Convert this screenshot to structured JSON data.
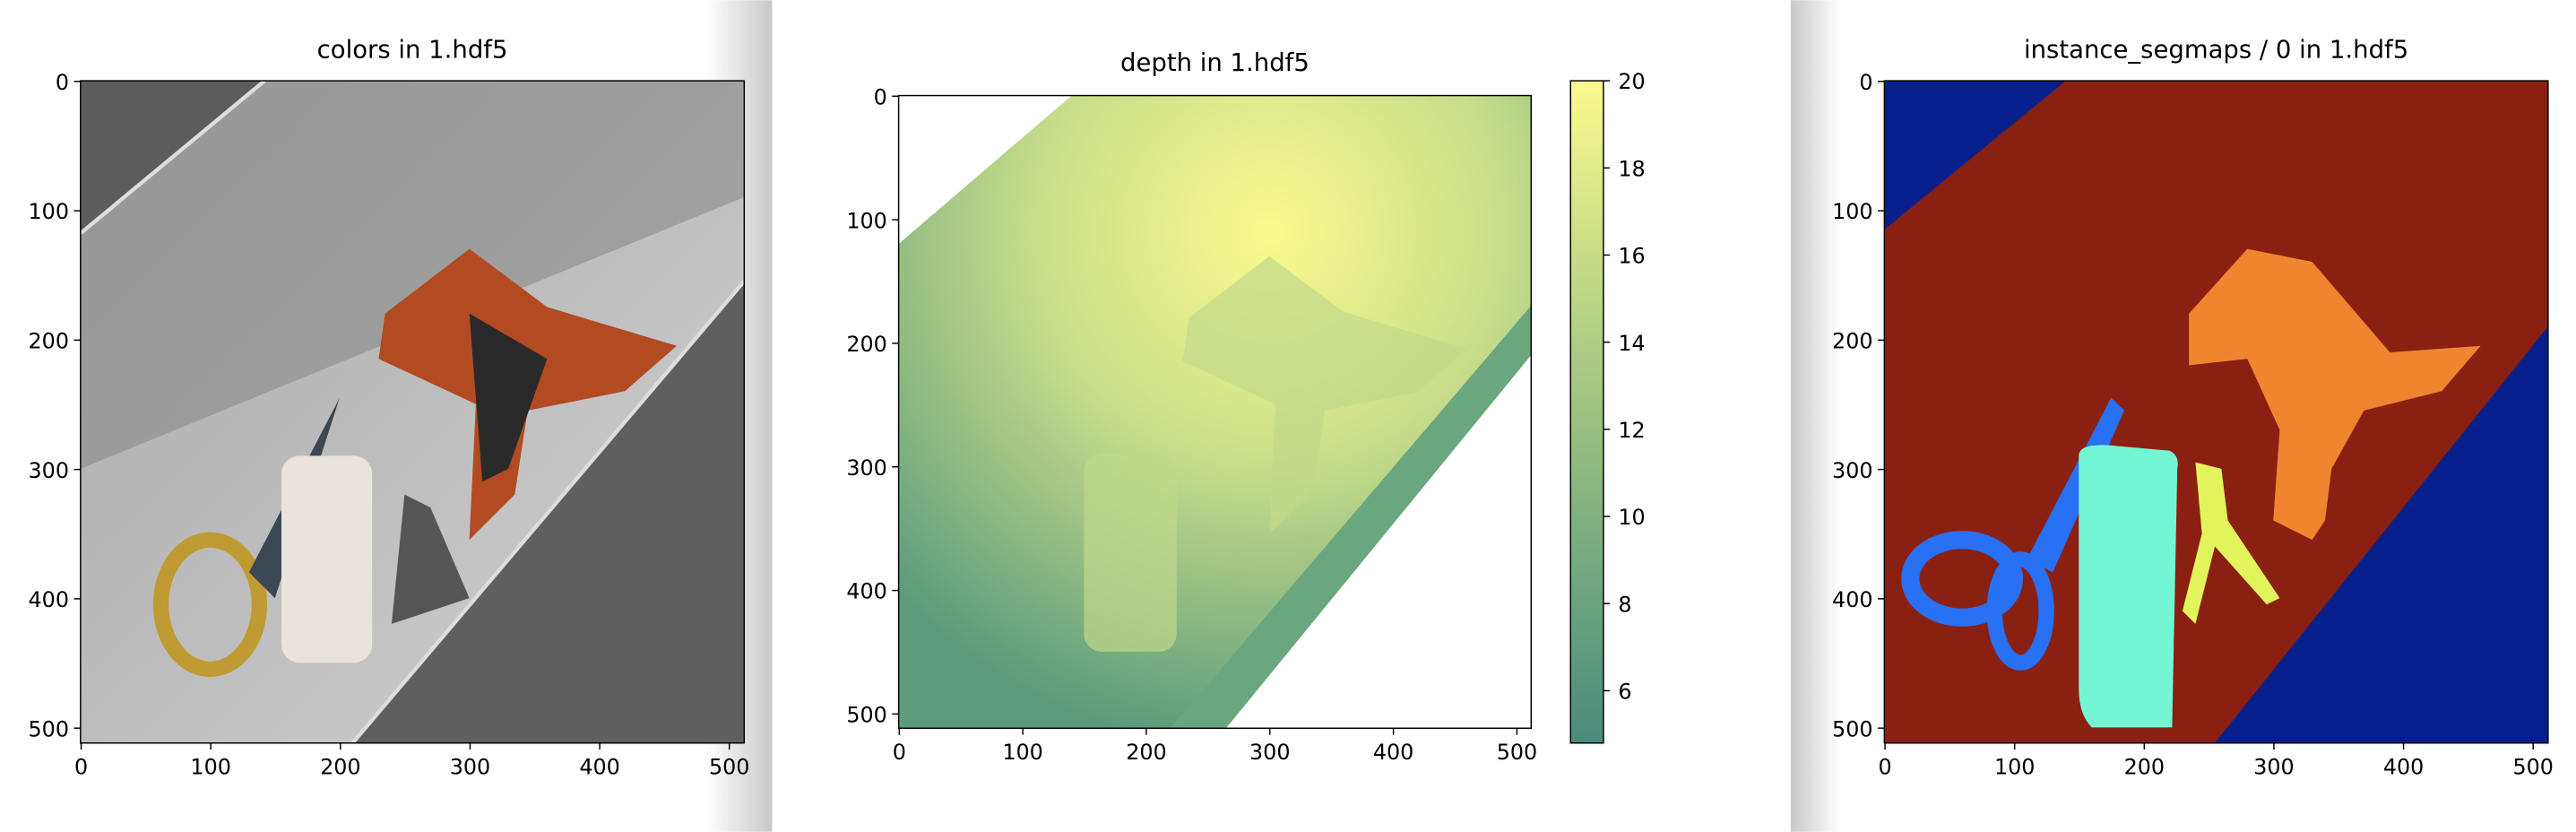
{
  "chart_data": [
    {
      "type": "image",
      "title": "colors in 1.hdf5",
      "xlim": [
        -0.5,
        511.5
      ],
      "ylim": [
        511.5,
        -0.5
      ],
      "xticks": [
        0,
        100,
        200,
        300,
        400,
        500
      ],
      "yticks": [
        0,
        100,
        200,
        300,
        400,
        500
      ]
    },
    {
      "type": "image",
      "title": "depth in 1.hdf5",
      "xlim": [
        -0.5,
        511.5
      ],
      "ylim": [
        511.5,
        -0.5
      ],
      "xticks": [
        0,
        100,
        200,
        300,
        400,
        500
      ],
      "yticks": [
        0,
        100,
        200,
        300,
        400,
        500
      ],
      "colorbar": {
        "lim": [
          4.8,
          20
        ],
        "ticks": [
          6,
          8,
          10,
          12,
          14,
          16,
          18,
          20
        ],
        "colors": [
          "#4a8b7c",
          "#9cc282",
          "#fafa8e"
        ]
      }
    },
    {
      "type": "image",
      "title": "instance_segmaps / 0 in 1.hdf5",
      "xlim": [
        -0.5,
        511.5
      ],
      "ylim": [
        511.5,
        -0.5
      ],
      "xticks": [
        0,
        100,
        200,
        300,
        400,
        500
      ],
      "yticks": [
        0,
        100,
        200,
        300,
        400,
        500
      ]
    }
  ]
}
